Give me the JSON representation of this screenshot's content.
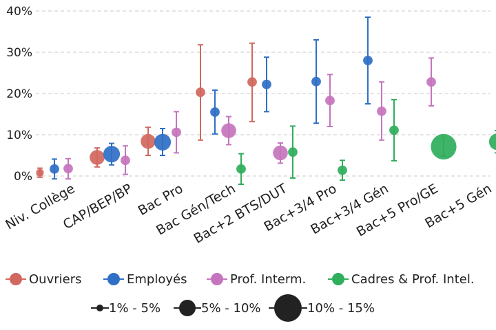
{
  "chart_data": {
    "type": "scatter",
    "subtype": "dot-with-error-bars",
    "title": "",
    "xlabel": "",
    "ylabel": "",
    "ylim": [
      0,
      40
    ],
    "y_ticks": [
      {
        "value": 0,
        "label": "0%"
      },
      {
        "value": 10,
        "label": "10%"
      },
      {
        "value": 20,
        "label": "20%"
      },
      {
        "value": 30,
        "label": "30%"
      },
      {
        "value": 40,
        "label": "40%"
      }
    ],
    "grid": true,
    "legend_position": "bottom",
    "categories": [
      "Niv. Collège",
      "CAP/BEP/BP",
      "Bac Pro",
      "Bac Gén/Tech",
      "Bac+2 BTS/DUT",
      "Bac+3/4 Pro",
      "Bac+3/4 Gén",
      "Bac+5 Pro/GE",
      "Bac+5 Gén"
    ],
    "series": [
      {
        "name": "Ouvriers",
        "color": "#d1675e",
        "points": [
          {
            "category": "Niv. Collège",
            "value": 0.8,
            "low": -0.3,
            "high": 1.9,
            "size": 2
          },
          {
            "category": "CAP/BEP/BP",
            "value": 4.5,
            "low": 2.2,
            "high": 6.8,
            "size": 6
          },
          {
            "category": "Bac Pro",
            "value": 8.4,
            "low": 5.0,
            "high": 11.8,
            "size": 6
          },
          {
            "category": "Bac Gén/Tech",
            "value": 20.3,
            "low": 8.7,
            "high": 31.8,
            "size": 3
          },
          {
            "category": "Bac+2 BTS/DUT",
            "value": 22.8,
            "low": 13.2,
            "high": 32.2,
            "size": 3
          }
        ]
      },
      {
        "name": "Employés",
        "color": "#2f6fc5",
        "points": [
          {
            "category": "Niv. Collège",
            "value": 1.7,
            "low": -0.7,
            "high": 4.1,
            "size": 3
          },
          {
            "category": "CAP/BEP/BP",
            "value": 5.3,
            "low": 2.7,
            "high": 7.9,
            "size": 7
          },
          {
            "category": "Bac Pro",
            "value": 8.2,
            "low": 5.0,
            "high": 11.5,
            "size": 7
          },
          {
            "category": "Bac Gén/Tech",
            "value": 15.5,
            "low": 10.2,
            "high": 20.8,
            "size": 3
          },
          {
            "category": "Bac+2 BTS/DUT",
            "value": 22.2,
            "low": 15.6,
            "high": 28.8,
            "size": 3
          },
          {
            "category": "Bac+3/4 Pro",
            "value": 22.9,
            "low": 12.8,
            "high": 33.0,
            "size": 3
          },
          {
            "category": "Bac+3/4 Gén",
            "value": 28.0,
            "low": 17.5,
            "high": 38.5,
            "size": 3
          }
        ]
      },
      {
        "name": "Prof. Interm.",
        "color": "#c574bd",
        "points": [
          {
            "category": "Niv. Collège",
            "value": 1.8,
            "low": -0.7,
            "high": 4.2,
            "size": 3
          },
          {
            "category": "CAP/BEP/BP",
            "value": 3.8,
            "low": 0.4,
            "high": 7.3,
            "size": 3
          },
          {
            "category": "Bac Pro",
            "value": 10.6,
            "low": 5.6,
            "high": 15.6,
            "size": 3
          },
          {
            "category": "Bac Gén/Tech",
            "value": 11.0,
            "low": 7.6,
            "high": 14.4,
            "size": 6
          },
          {
            "category": "Bac+2 BTS/DUT",
            "value": 5.6,
            "low": 3.1,
            "high": 8.0,
            "size": 6
          },
          {
            "category": "Bac+3/4 Pro",
            "value": 18.3,
            "low": 12.0,
            "high": 24.6,
            "size": 3
          },
          {
            "category": "Bac+3/4 Gén",
            "value": 15.7,
            "low": 8.7,
            "high": 22.8,
            "size": 3
          },
          {
            "category": "Bac+5 Pro/GE",
            "value": 22.8,
            "low": 17.0,
            "high": 28.6,
            "size": 3
          }
        ]
      },
      {
        "name": "Cadres & Prof. Intel.",
        "color": "#2fae5c",
        "points": [
          {
            "category": "Bac Gén/Tech",
            "value": 1.7,
            "low": -2.0,
            "high": 5.4,
            "size": 3
          },
          {
            "category": "Bac+2 BTS/DUT",
            "value": 5.8,
            "low": -0.5,
            "high": 12.1,
            "size": 3
          },
          {
            "category": "Bac+3/4 Pro",
            "value": 1.4,
            "low": -1.0,
            "high": 3.8,
            "size": 3
          },
          {
            "category": "Bac+3/4 Gén",
            "value": 11.1,
            "low": 3.7,
            "high": 18.5,
            "size": 3
          },
          {
            "category": "Bac+5 Pro/GE",
            "value": 7.1,
            "low": 4.8,
            "high": 9.4,
            "size": 12
          },
          {
            "category": "Bac+5 Gén",
            "value": 8.3,
            "low": 5.6,
            "high": 11.0,
            "size": 7
          }
        ]
      }
    ],
    "size_legend": [
      {
        "label": "1% - 5%",
        "size": 2
      },
      {
        "label": "5% - 10%",
        "size": 7
      },
      {
        "label": "10% - 15%",
        "size": 12
      }
    ]
  }
}
